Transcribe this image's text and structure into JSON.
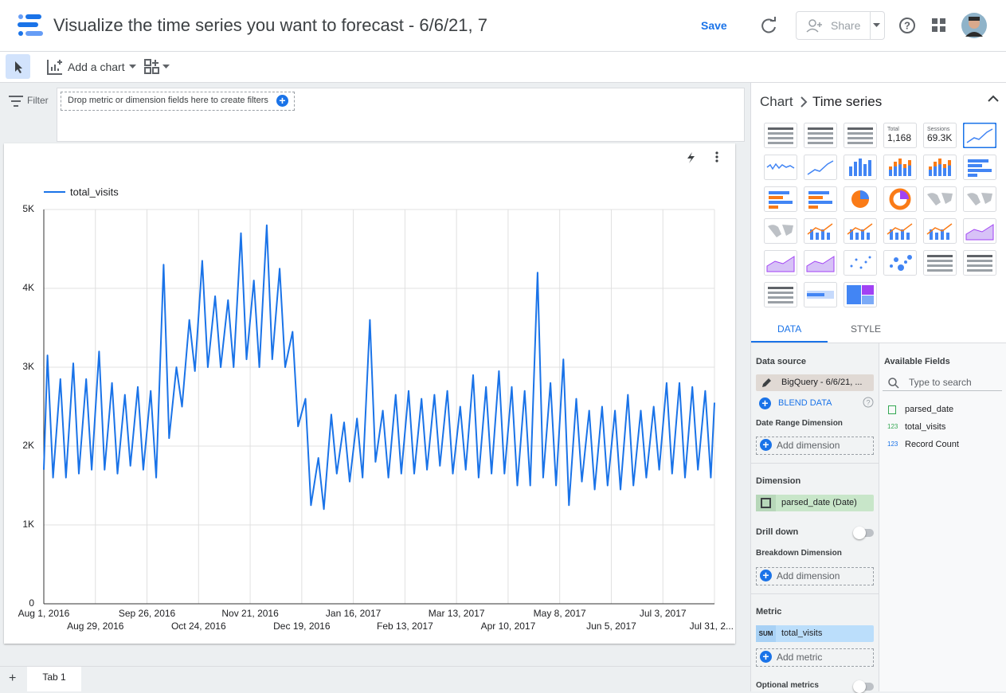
{
  "header": {
    "title": "Visualize the time series you want to forecast - 6/6/21, 7",
    "save": "Save",
    "share": "Share"
  },
  "toolbar": {
    "add_chart": "Add a chart"
  },
  "filter": {
    "label": "Filter",
    "placeholder": "Drop metric or dimension fields here to create filters"
  },
  "chart_data": {
    "type": "line",
    "x": [
      "2016-08-01",
      "2016-08-03",
      "2016-08-06",
      "2016-08-10",
      "2016-08-13",
      "2016-08-17",
      "2016-08-20",
      "2016-08-24",
      "2016-08-27",
      "2016-08-31",
      "2016-09-03",
      "2016-09-07",
      "2016-09-10",
      "2016-09-14",
      "2016-09-17",
      "2016-09-21",
      "2016-09-24",
      "2016-09-28",
      "2016-10-01",
      "2016-10-05",
      "2016-10-08",
      "2016-10-12",
      "2016-10-15",
      "2016-10-19",
      "2016-10-22",
      "2016-10-26",
      "2016-10-29",
      "2016-11-02",
      "2016-11-05",
      "2016-11-09",
      "2016-11-12",
      "2016-11-16",
      "2016-11-19",
      "2016-11-23",
      "2016-11-26",
      "2016-11-30",
      "2016-12-03",
      "2016-12-07",
      "2016-12-10",
      "2016-12-14",
      "2016-12-17",
      "2016-12-21",
      "2016-12-24",
      "2016-12-28",
      "2016-12-31",
      "2017-01-04",
      "2017-01-07",
      "2017-01-11",
      "2017-01-14",
      "2017-01-18",
      "2017-01-21",
      "2017-01-25",
      "2017-01-28",
      "2017-02-01",
      "2017-02-04",
      "2017-02-08",
      "2017-02-11",
      "2017-02-15",
      "2017-02-18",
      "2017-02-22",
      "2017-02-25",
      "2017-03-01",
      "2017-03-04",
      "2017-03-08",
      "2017-03-11",
      "2017-03-15",
      "2017-03-18",
      "2017-03-22",
      "2017-03-25",
      "2017-03-29",
      "2017-04-01",
      "2017-04-05",
      "2017-04-08",
      "2017-04-12",
      "2017-04-15",
      "2017-04-19",
      "2017-04-22",
      "2017-04-26",
      "2017-04-29",
      "2017-05-03",
      "2017-05-06",
      "2017-05-10",
      "2017-05-13",
      "2017-05-17",
      "2017-05-20",
      "2017-05-24",
      "2017-05-27",
      "2017-05-31",
      "2017-06-03",
      "2017-06-07",
      "2017-06-10",
      "2017-06-14",
      "2017-06-17",
      "2017-06-21",
      "2017-06-24",
      "2017-06-28",
      "2017-07-01",
      "2017-07-05",
      "2017-07-08",
      "2017-07-12",
      "2017-07-15",
      "2017-07-19",
      "2017-07-22",
      "2017-07-26",
      "2017-07-29",
      "2017-07-31"
    ],
    "series": [
      {
        "name": "total_visits",
        "color": "#1a73e8",
        "values": [
          1700,
          3150,
          1600,
          2850,
          1600,
          3050,
          1650,
          2850,
          1700,
          3200,
          1700,
          2800,
          1650,
          2650,
          1750,
          2750,
          1700,
          2700,
          1600,
          4300,
          2100,
          3000,
          2500,
          3600,
          2950,
          4350,
          3000,
          3900,
          3000,
          3850,
          3000,
          4700,
          3100,
          4100,
          3000,
          4800,
          3100,
          4250,
          3000,
          3450,
          2250,
          2600,
          1250,
          1850,
          1200,
          2400,
          1650,
          2300,
          1550,
          2350,
          1600,
          3600,
          1800,
          2450,
          1600,
          2650,
          1650,
          2700,
          1650,
          2600,
          1700,
          2650,
          1750,
          2700,
          1650,
          2500,
          1700,
          2900,
          1600,
          2750,
          1650,
          2950,
          1650,
          2750,
          1500,
          2700,
          1500,
          4200,
          1600,
          2800,
          1500,
          3100,
          1250,
          2600,
          1550,
          2450,
          1450,
          2500,
          1500,
          2450,
          1450,
          2650,
          1500,
          2450,
          1600,
          2500,
          1700,
          2800,
          1650,
          2800,
          1600,
          2750,
          1700,
          2700,
          1600,
          2550
        ]
      }
    ],
    "xlim": [
      "2016-08-01",
      "2017-07-31"
    ],
    "xticks": [
      {
        "value": "2016-08-01",
        "label": "Aug 1, 2016"
      },
      {
        "value": "2016-08-29",
        "label": "Aug 29, 2016"
      },
      {
        "value": "2016-09-26",
        "label": "Sep 26, 2016"
      },
      {
        "value": "2016-10-24",
        "label": "Oct 24, 2016"
      },
      {
        "value": "2016-11-21",
        "label": "Nov 21, 2016"
      },
      {
        "value": "2016-12-19",
        "label": "Dec 19, 2016"
      },
      {
        "value": "2017-01-16",
        "label": "Jan 16, 2017"
      },
      {
        "value": "2017-02-13",
        "label": "Feb 13, 2017"
      },
      {
        "value": "2017-03-13",
        "label": "Mar 13, 2017"
      },
      {
        "value": "2017-04-10",
        "label": "Apr 10, 2017"
      },
      {
        "value": "2017-05-08",
        "label": "May 8, 2017"
      },
      {
        "value": "2017-06-05",
        "label": "Jun 5, 2017"
      },
      {
        "value": "2017-07-03",
        "label": "Jul 3, 2017"
      },
      {
        "value": "2017-07-31",
        "label": "Jul 31, 2..."
      }
    ],
    "ylim": [
      0,
      5000
    ],
    "yticks": [
      0,
      {
        "value": 1000,
        "label": "1K"
      },
      {
        "value": 2000,
        "label": "2K"
      },
      {
        "value": 3000,
        "label": "3K"
      },
      {
        "value": 4000,
        "label": "4K"
      },
      {
        "value": 5000,
        "label": "5K"
      }
    ],
    "grid": true,
    "legend": "top-left"
  },
  "panel": {
    "breadcrumb": [
      "Chart",
      "Time series"
    ],
    "chart_icons": [
      {
        "label": "Total",
        "value": "1,168"
      },
      {
        "label": "Sessions",
        "value": "69.3K"
      }
    ],
    "tabs": [
      "DATA",
      "STYLE"
    ],
    "data_source_label": "Data source",
    "data_source": "BigQuery - 6/6/21, ...",
    "blend": "BLEND DATA",
    "date_range_label": "Date Range Dimension",
    "add_dimension": "Add dimension",
    "dimension_label": "Dimension",
    "dimension": "parsed_date (Date)",
    "drill_down": "Drill down",
    "breakdown_label": "Breakdown Dimension",
    "metric_label": "Metric",
    "metric_agg": "SUM",
    "metric": "total_visits",
    "add_metric": "Add metric",
    "optional_metrics": "Optional metrics",
    "available_fields": "Available Fields",
    "search": "Type to search",
    "fields": [
      {
        "name": "parsed_date"
      },
      {
        "type": "123",
        "name": "total_visits"
      },
      {
        "type": "123",
        "name": "Record Count"
      }
    ]
  },
  "tabs": [
    "Tab 1"
  ]
}
